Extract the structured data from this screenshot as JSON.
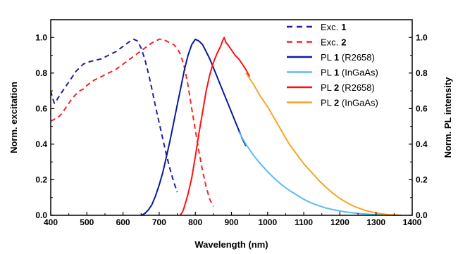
{
  "chart_data": {
    "type": "line",
    "xlabel": "Wavelength (nm)",
    "ylabel_left": "Norm. excitation",
    "ylabel_right": "Norm. PL intensity",
    "xlim": [
      400,
      1400
    ],
    "ylim": [
      0.0,
      1.1
    ],
    "x_ticks": [
      "400",
      "500",
      "600",
      "700",
      "800",
      "900",
      "1000",
      "1100",
      "1200",
      "1300",
      "1400"
    ],
    "y_ticks": [
      "0.0",
      "0.2",
      "0.4",
      "0.6",
      "0.8",
      "1.0"
    ],
    "grid": false,
    "legend_position": "top-right",
    "series": [
      {
        "name": "Exc. 1",
        "label_main": "Exc.",
        "label_bold": "1",
        "label_suffix": "",
        "color": "#1f1f9f",
        "style": "dashed",
        "x": [
          400,
          405,
          410,
          415,
          420,
          430,
          440,
          450,
          460,
          470,
          480,
          490,
          500,
          520,
          540,
          560,
          580,
          600,
          620,
          630,
          640,
          650,
          660,
          670,
          680,
          690,
          700,
          710,
          720,
          730,
          740,
          750
        ],
        "y": [
          0.7,
          0.66,
          0.63,
          0.64,
          0.66,
          0.69,
          0.72,
          0.75,
          0.78,
          0.81,
          0.83,
          0.85,
          0.86,
          0.87,
          0.88,
          0.9,
          0.92,
          0.95,
          0.98,
          0.99,
          0.98,
          0.94,
          0.88,
          0.8,
          0.71,
          0.61,
          0.52,
          0.43,
          0.34,
          0.26,
          0.19,
          0.13
        ]
      },
      {
        "name": "Exc. 2",
        "label_main": "Exc.",
        "label_bold": "2",
        "label_suffix": "",
        "color": "#ff2020",
        "style": "dashed",
        "x": [
          400,
          410,
          420,
          430,
          440,
          450,
          460,
          470,
          480,
          490,
          500,
          520,
          540,
          560,
          580,
          600,
          620,
          640,
          660,
          680,
          700,
          710,
          720,
          730,
          740,
          750,
          760,
          770,
          780,
          790,
          800,
          810,
          820,
          830,
          840,
          850
        ],
        "y": [
          0.53,
          0.54,
          0.55,
          0.57,
          0.6,
          0.63,
          0.66,
          0.68,
          0.7,
          0.71,
          0.73,
          0.76,
          0.78,
          0.8,
          0.82,
          0.85,
          0.88,
          0.91,
          0.94,
          0.97,
          0.99,
          0.99,
          0.98,
          0.97,
          0.96,
          0.94,
          0.9,
          0.83,
          0.73,
          0.6,
          0.48,
          0.36,
          0.25,
          0.16,
          0.09,
          0.05
        ]
      },
      {
        "name": "PL 1 (R2658)",
        "label_main": "PL ",
        "label_bold": "1",
        "label_suffix": " (R2658)",
        "color": "#0b1a9a",
        "style": "solid",
        "x": [
          650,
          660,
          670,
          680,
          690,
          700,
          710,
          720,
          730,
          740,
          750,
          760,
          770,
          780,
          790,
          800,
          810,
          820,
          830,
          840,
          850,
          860,
          870,
          880,
          890,
          900,
          910,
          920,
          930,
          940
        ],
        "y": [
          0.0,
          0.01,
          0.03,
          0.06,
          0.11,
          0.17,
          0.24,
          0.33,
          0.42,
          0.52,
          0.62,
          0.72,
          0.82,
          0.9,
          0.96,
          0.99,
          0.98,
          0.96,
          0.92,
          0.88,
          0.83,
          0.78,
          0.73,
          0.68,
          0.63,
          0.58,
          0.53,
          0.48,
          0.43,
          0.39
        ]
      },
      {
        "name": "PL 1 (InGaAs)",
        "label_main": "PL ",
        "label_bold": "1",
        "label_suffix": " (InGaAs)",
        "color": "#5bbcf0",
        "style": "solid",
        "x": [
          920,
          940,
          960,
          980,
          1000,
          1020,
          1040,
          1060,
          1080,
          1100,
          1120,
          1140,
          1160,
          1180,
          1200,
          1220,
          1240,
          1260,
          1280,
          1300,
          1320,
          1340,
          1360
        ],
        "y": [
          0.47,
          0.4,
          0.34,
          0.29,
          0.245,
          0.205,
          0.17,
          0.14,
          0.115,
          0.09,
          0.07,
          0.055,
          0.042,
          0.032,
          0.024,
          0.018,
          0.013,
          0.009,
          0.006,
          0.004,
          0.002,
          0.001,
          0.0
        ]
      },
      {
        "name": "PL 2 (R2658)",
        "label_main": "PL ",
        "label_bold": "2",
        "label_suffix": " (R2658)",
        "color": "#ff1010",
        "style": "solid",
        "x": [
          758,
          765,
          770,
          780,
          790,
          800,
          810,
          820,
          830,
          840,
          850,
          860,
          870,
          875,
          880,
          885,
          890,
          900,
          910,
          920,
          930,
          940,
          950
        ],
        "y": [
          0.0,
          0.02,
          0.05,
          0.12,
          0.21,
          0.33,
          0.46,
          0.58,
          0.7,
          0.79,
          0.86,
          0.91,
          0.95,
          0.98,
          1.0,
          0.97,
          0.96,
          0.93,
          0.9,
          0.88,
          0.85,
          0.82,
          0.78
        ]
      },
      {
        "name": "PL 2 (InGaAs)",
        "label_main": "PL ",
        "label_bold": "2",
        "label_suffix": " (InGaAs)",
        "color": "#f5a623",
        "style": "solid",
        "x": [
          940,
          960,
          980,
          1000,
          1020,
          1040,
          1060,
          1080,
          1100,
          1120,
          1140,
          1160,
          1180,
          1200,
          1220,
          1240,
          1260,
          1280,
          1300,
          1320,
          1340,
          1360,
          1370
        ],
        "y": [
          0.8,
          0.74,
          0.67,
          0.61,
          0.54,
          0.47,
          0.4,
          0.345,
          0.29,
          0.245,
          0.2,
          0.16,
          0.125,
          0.095,
          0.07,
          0.05,
          0.035,
          0.022,
          0.013,
          0.007,
          0.003,
          0.001,
          0.0
        ]
      }
    ]
  }
}
